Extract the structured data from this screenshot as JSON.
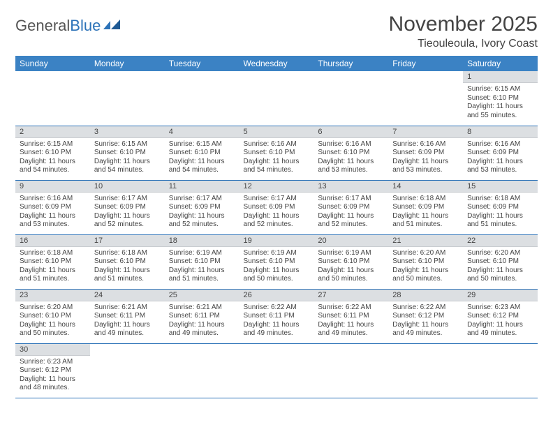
{
  "logo": {
    "text1": "General",
    "text2": "Blue"
  },
  "title": "November 2025",
  "location": "Tieouleoula, Ivory Coast",
  "colors": {
    "header_bg": "#3b82c4",
    "header_text": "#ffffff",
    "daynum_bg": "#dcdfe2",
    "row_divider": "#2d73b8",
    "logo_accent": "#2d73b8"
  },
  "weekdays": [
    "Sunday",
    "Monday",
    "Tuesday",
    "Wednesday",
    "Thursday",
    "Friday",
    "Saturday"
  ],
  "first_weekday_index": 6,
  "days": [
    {
      "n": 1,
      "sr": "6:15 AM",
      "ss": "6:10 PM",
      "dl": "11 hours and 55 minutes."
    },
    {
      "n": 2,
      "sr": "6:15 AM",
      "ss": "6:10 PM",
      "dl": "11 hours and 54 minutes."
    },
    {
      "n": 3,
      "sr": "6:15 AM",
      "ss": "6:10 PM",
      "dl": "11 hours and 54 minutes."
    },
    {
      "n": 4,
      "sr": "6:15 AM",
      "ss": "6:10 PM",
      "dl": "11 hours and 54 minutes."
    },
    {
      "n": 5,
      "sr": "6:16 AM",
      "ss": "6:10 PM",
      "dl": "11 hours and 54 minutes."
    },
    {
      "n": 6,
      "sr": "6:16 AM",
      "ss": "6:10 PM",
      "dl": "11 hours and 53 minutes."
    },
    {
      "n": 7,
      "sr": "6:16 AM",
      "ss": "6:09 PM",
      "dl": "11 hours and 53 minutes."
    },
    {
      "n": 8,
      "sr": "6:16 AM",
      "ss": "6:09 PM",
      "dl": "11 hours and 53 minutes."
    },
    {
      "n": 9,
      "sr": "6:16 AM",
      "ss": "6:09 PM",
      "dl": "11 hours and 53 minutes."
    },
    {
      "n": 10,
      "sr": "6:17 AM",
      "ss": "6:09 PM",
      "dl": "11 hours and 52 minutes."
    },
    {
      "n": 11,
      "sr": "6:17 AM",
      "ss": "6:09 PM",
      "dl": "11 hours and 52 minutes."
    },
    {
      "n": 12,
      "sr": "6:17 AM",
      "ss": "6:09 PM",
      "dl": "11 hours and 52 minutes."
    },
    {
      "n": 13,
      "sr": "6:17 AM",
      "ss": "6:09 PM",
      "dl": "11 hours and 52 minutes."
    },
    {
      "n": 14,
      "sr": "6:18 AM",
      "ss": "6:09 PM",
      "dl": "11 hours and 51 minutes."
    },
    {
      "n": 15,
      "sr": "6:18 AM",
      "ss": "6:09 PM",
      "dl": "11 hours and 51 minutes."
    },
    {
      "n": 16,
      "sr": "6:18 AM",
      "ss": "6:10 PM",
      "dl": "11 hours and 51 minutes."
    },
    {
      "n": 17,
      "sr": "6:18 AM",
      "ss": "6:10 PM",
      "dl": "11 hours and 51 minutes."
    },
    {
      "n": 18,
      "sr": "6:19 AM",
      "ss": "6:10 PM",
      "dl": "11 hours and 51 minutes."
    },
    {
      "n": 19,
      "sr": "6:19 AM",
      "ss": "6:10 PM",
      "dl": "11 hours and 50 minutes."
    },
    {
      "n": 20,
      "sr": "6:19 AM",
      "ss": "6:10 PM",
      "dl": "11 hours and 50 minutes."
    },
    {
      "n": 21,
      "sr": "6:20 AM",
      "ss": "6:10 PM",
      "dl": "11 hours and 50 minutes."
    },
    {
      "n": 22,
      "sr": "6:20 AM",
      "ss": "6:10 PM",
      "dl": "11 hours and 50 minutes."
    },
    {
      "n": 23,
      "sr": "6:20 AM",
      "ss": "6:10 PM",
      "dl": "11 hours and 50 minutes."
    },
    {
      "n": 24,
      "sr": "6:21 AM",
      "ss": "6:11 PM",
      "dl": "11 hours and 49 minutes."
    },
    {
      "n": 25,
      "sr": "6:21 AM",
      "ss": "6:11 PM",
      "dl": "11 hours and 49 minutes."
    },
    {
      "n": 26,
      "sr": "6:22 AM",
      "ss": "6:11 PM",
      "dl": "11 hours and 49 minutes."
    },
    {
      "n": 27,
      "sr": "6:22 AM",
      "ss": "6:11 PM",
      "dl": "11 hours and 49 minutes."
    },
    {
      "n": 28,
      "sr": "6:22 AM",
      "ss": "6:12 PM",
      "dl": "11 hours and 49 minutes."
    },
    {
      "n": 29,
      "sr": "6:23 AM",
      "ss": "6:12 PM",
      "dl": "11 hours and 49 minutes."
    },
    {
      "n": 30,
      "sr": "6:23 AM",
      "ss": "6:12 PM",
      "dl": "11 hours and 48 minutes."
    }
  ],
  "labels": {
    "sunrise": "Sunrise:",
    "sunset": "Sunset:",
    "daylight": "Daylight:"
  }
}
